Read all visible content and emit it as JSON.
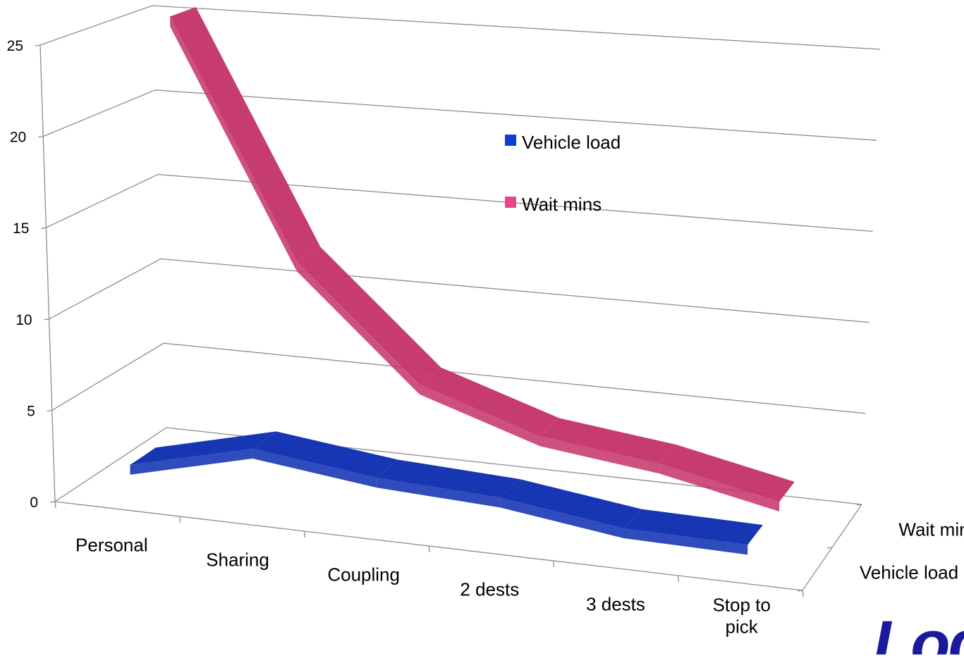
{
  "chart_data": {
    "type": "line",
    "subtype": "3d-line",
    "categories": [
      "Personal",
      "Sharing",
      "Coupling",
      "2 dests",
      "3 dests",
      "Stop to\npick"
    ],
    "series": [
      {
        "name": "Vehicle load",
        "values": [
          1.9,
          3.6,
          2.8,
          2.5,
          1.6,
          1.5
        ],
        "color": "#0b2bb0",
        "swatch": "#0a3fd6"
      },
      {
        "name": "Wait mins",
        "values": [
          25.6,
          12.3,
          6.0,
          3.8,
          3.0,
          1.6
        ],
        "color": "#c43168",
        "swatch": "#e8458a"
      }
    ],
    "depth_labels": [
      "Wait mins",
      "Vehicle load"
    ],
    "ylim": [
      0,
      25
    ],
    "yticks": [
      "0",
      "5",
      "10",
      "15",
      "20",
      "25"
    ],
    "grid": true,
    "legend": "center",
    "title": "",
    "xlabel": "",
    "ylabel": ""
  },
  "logo": {
    "text": "Log"
  }
}
